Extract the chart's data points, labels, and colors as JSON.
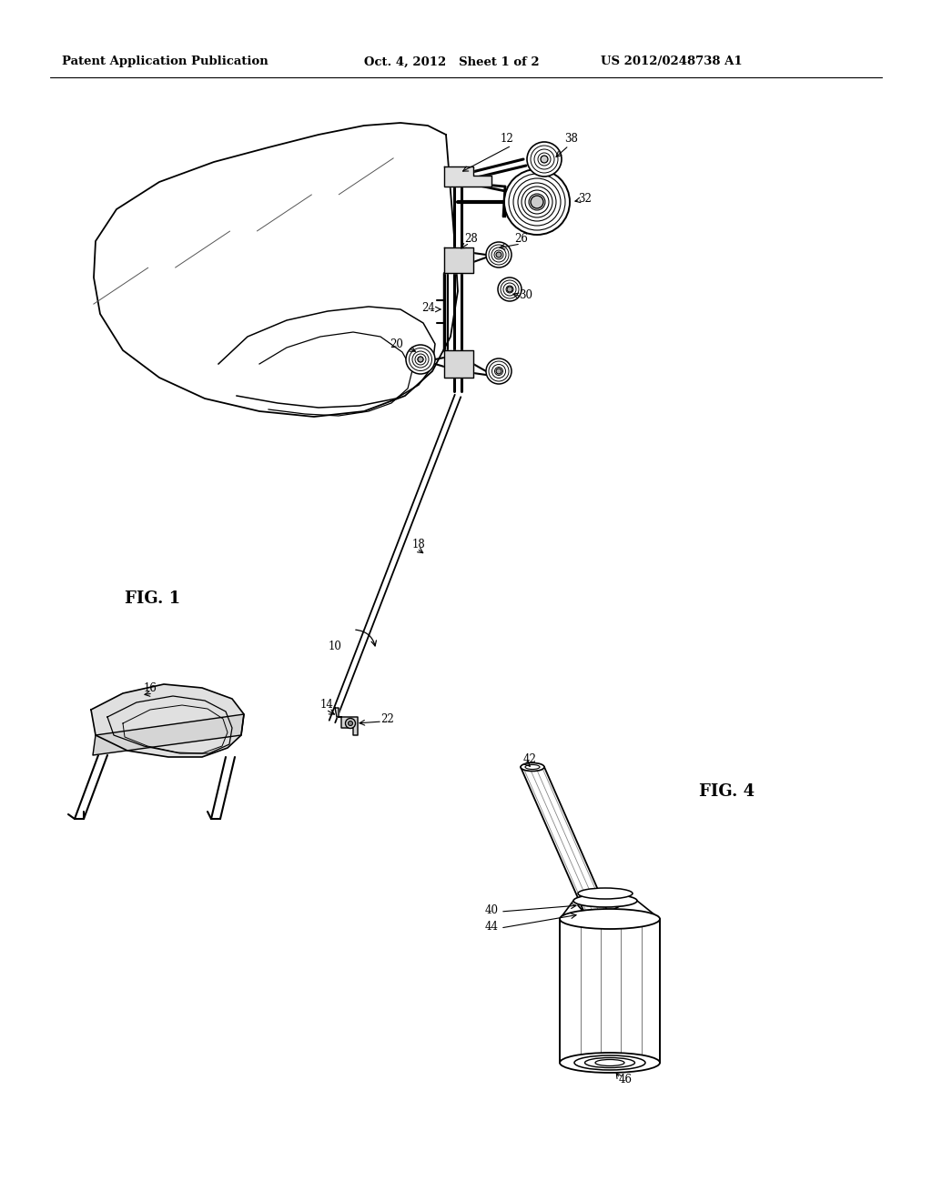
{
  "background_color": "#ffffff",
  "header_left": "Patent Application Publication",
  "header_center": "Oct. 4, 2012   Sheet 1 of 2",
  "header_right": "US 2012/0248738 A1",
  "fig1_label": "FIG. 1",
  "fig4_label": "FIG. 4",
  "header_fontsize": 9.5,
  "ref_fontsize": 8.5,
  "fig_label_fontsize": 13
}
